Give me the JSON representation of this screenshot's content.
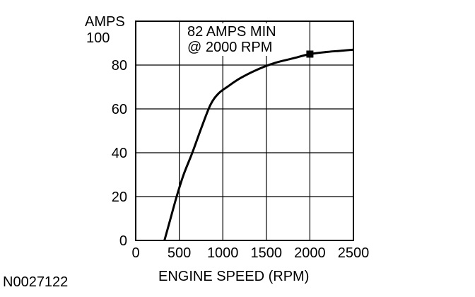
{
  "chart_data": {
    "type": "line",
    "title": "",
    "xlabel": "ENGINE SPEED (RPM)",
    "ylabel_unit": "AMPS",
    "ylabel_top_value": "100",
    "xlim": [
      0,
      2500
    ],
    "ylim": [
      0,
      100
    ],
    "x_ticks": [
      "0",
      "500",
      "1000",
      "1500",
      "2000",
      "2500"
    ],
    "y_ticks": [
      "0",
      "20",
      "40",
      "60",
      "80"
    ],
    "grid": true,
    "annotation": [
      "82 AMPS MIN",
      "@ 2000 RPM"
    ],
    "figure_id": "N0027122",
    "series": [
      {
        "x": [
          330,
          400,
          470,
          550,
          650,
          760,
          860,
          950,
          1050,
          1200,
          1400,
          1600,
          1800,
          2000,
          2200,
          2350,
          2500
        ],
        "y": [
          0,
          10,
          20,
          30,
          40,
          52,
          62,
          67,
          70,
          74,
          78,
          81,
          83,
          85,
          86,
          86.5,
          87
        ]
      }
    ],
    "marker_point": {
      "x": 2000,
      "y": 85
    },
    "colors": {
      "line": "#000000",
      "grid": "#000000",
      "background": "#ffffff"
    }
  }
}
